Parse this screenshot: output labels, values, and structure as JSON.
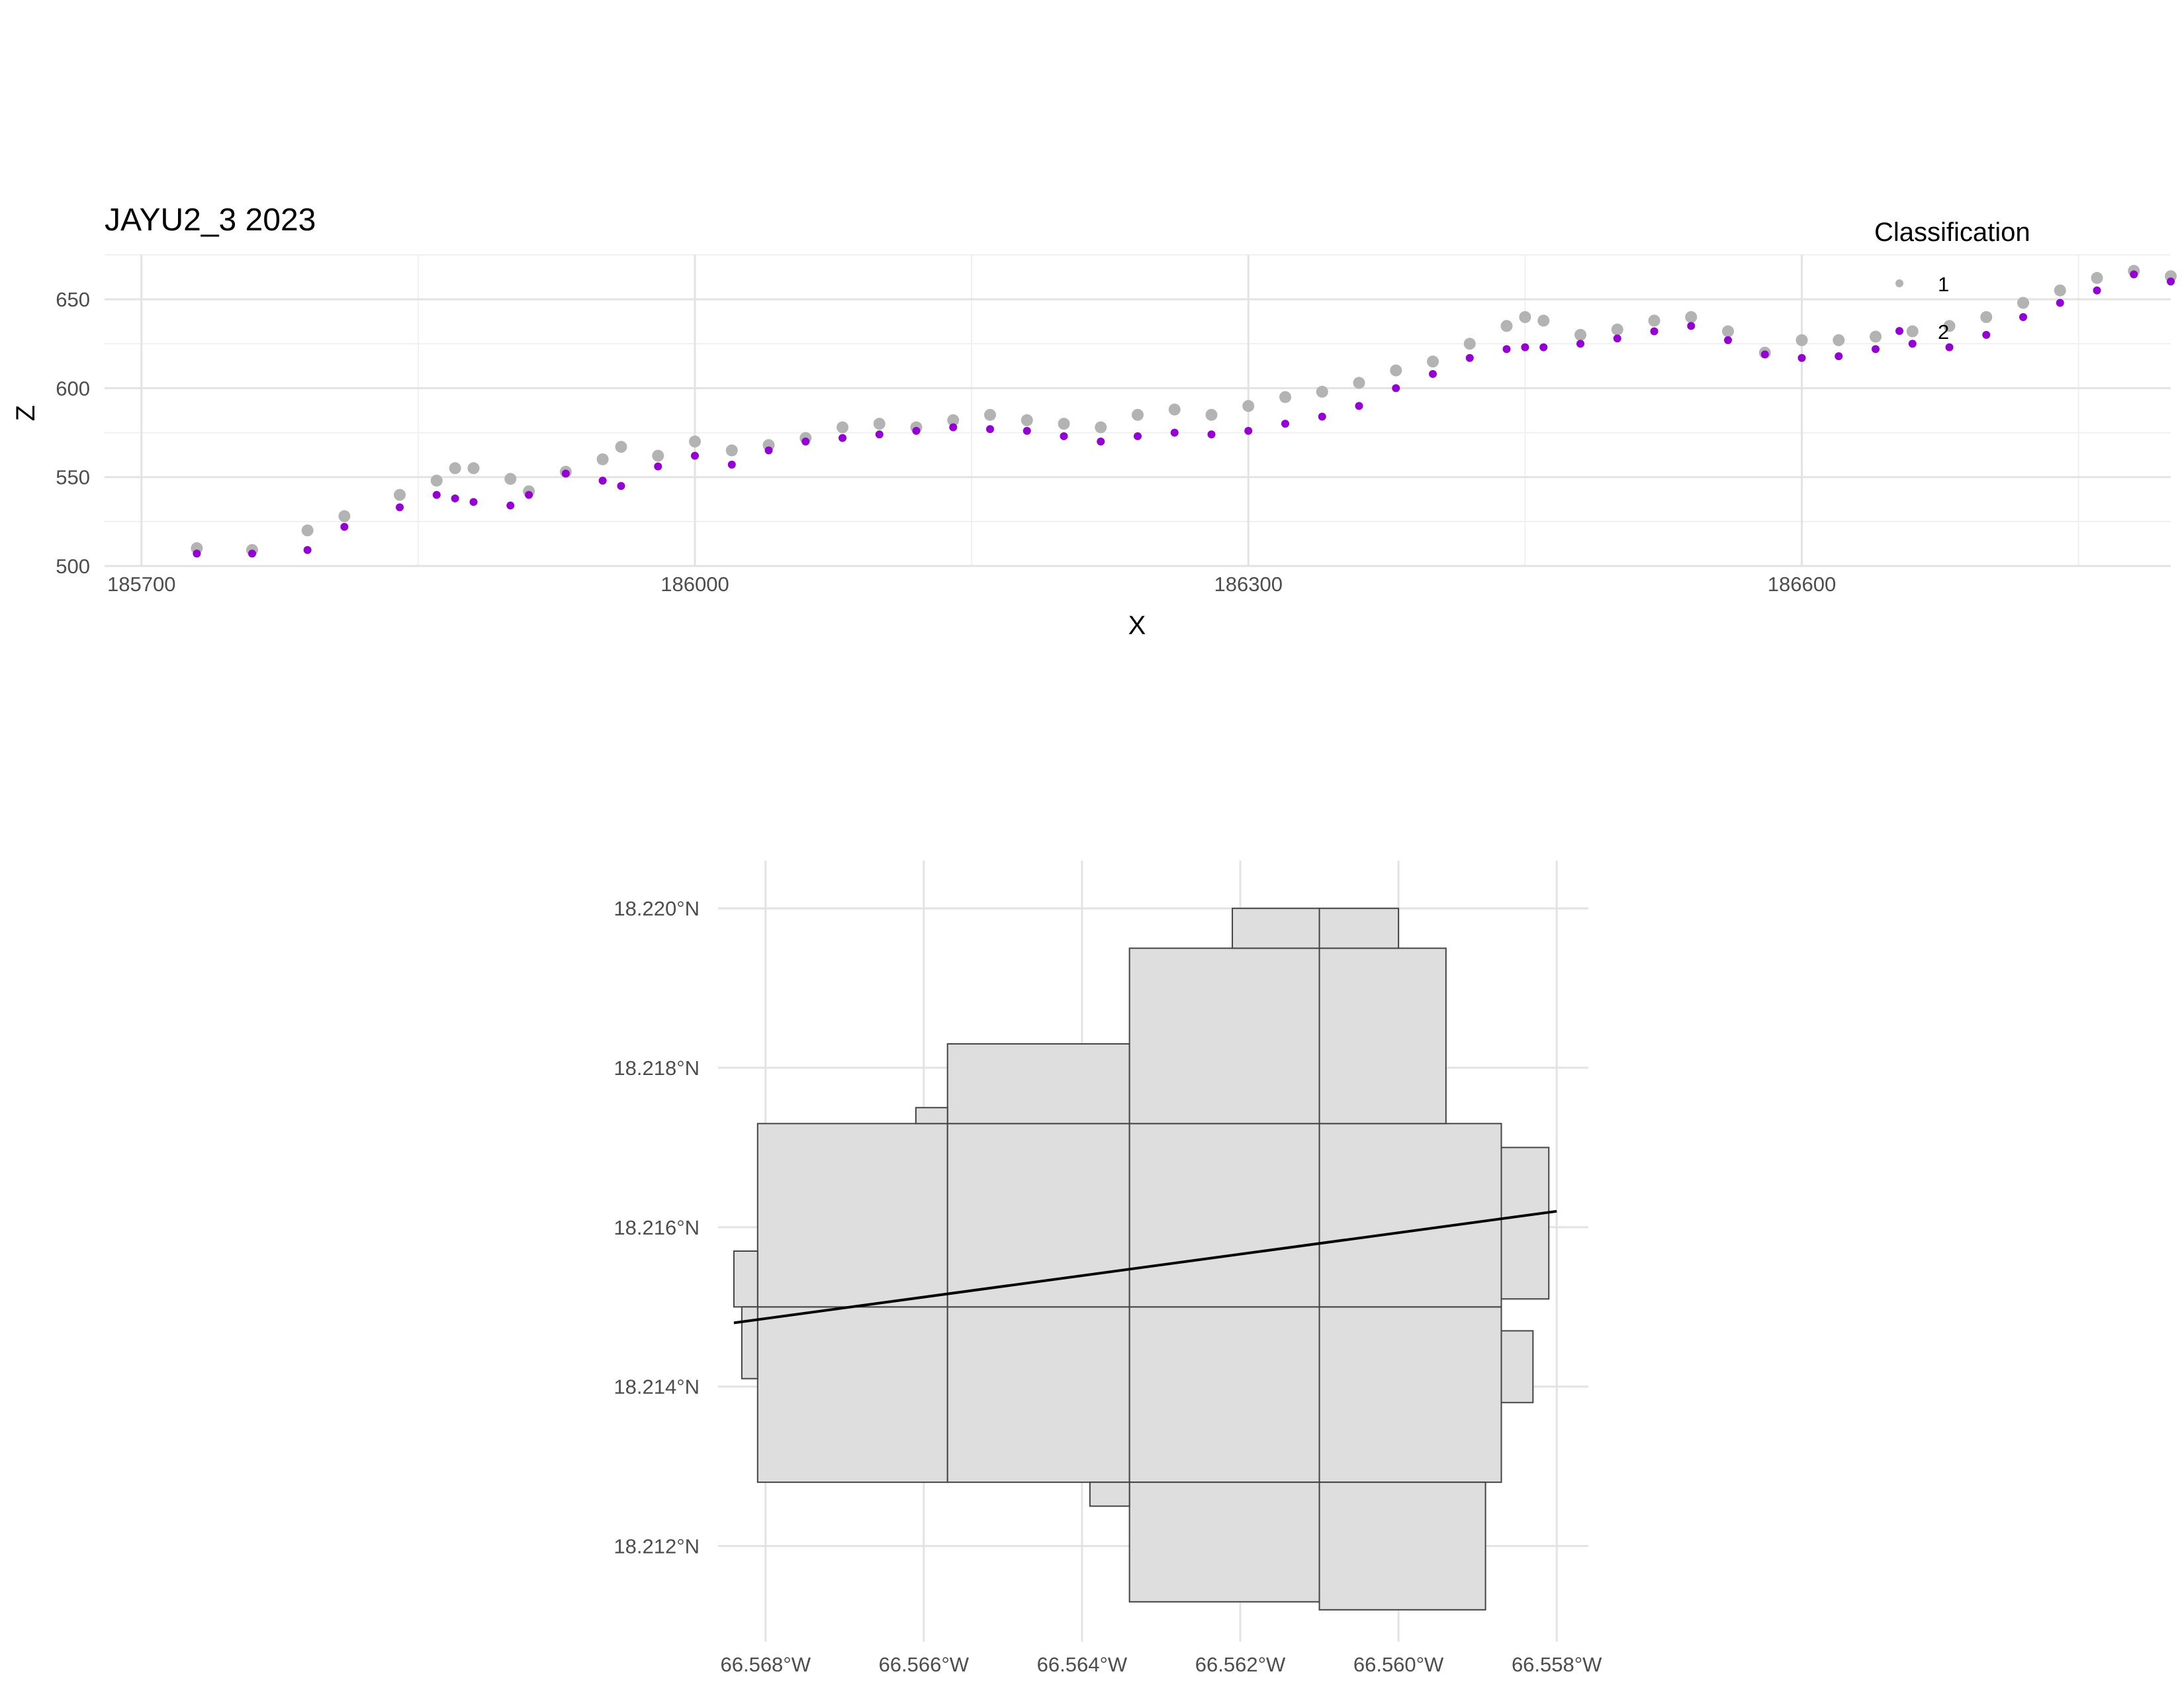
{
  "chart_data": [
    {
      "type": "scatter",
      "title": "JAYU2_3 2023",
      "xlabel": "X",
      "ylabel": "Z",
      "xlim": [
        185680,
        186800
      ],
      "ylim": [
        500,
        675
      ],
      "x_ticks": [
        185700,
        186000,
        186300,
        186600
      ],
      "x_tick_labels": [
        "185700",
        "186000",
        "186300",
        "186600"
      ],
      "y_ticks": [
        500,
        550,
        600,
        650
      ],
      "y_tick_labels": [
        "500",
        "550",
        "600",
        "650"
      ],
      "grid": true,
      "legend": {
        "title": "Classification",
        "placement": "top-right",
        "entries": [
          {
            "label": "1",
            "color": "#b3b3b3"
          },
          {
            "label": "2",
            "color": "#9400d3"
          }
        ]
      },
      "series": [
        {
          "name": "1",
          "color": "#b3b3b3",
          "x": [
            185730,
            185760,
            185790,
            185810,
            185840,
            185860,
            185870,
            185880,
            185900,
            185910,
            185930,
            185950,
            185960,
            185980,
            186000,
            186020,
            186040,
            186060,
            186080,
            186100,
            186120,
            186140,
            186160,
            186180,
            186200,
            186220,
            186240,
            186260,
            186280,
            186300,
            186320,
            186340,
            186360,
            186380,
            186400,
            186420,
            186440,
            186450,
            186460,
            186480,
            186500,
            186520,
            186540,
            186560,
            186580,
            186600,
            186620,
            186640,
            186660,
            186680,
            186700,
            186720,
            186740,
            186760,
            186780,
            186800
          ],
          "y": [
            510,
            509,
            520,
            528,
            540,
            548,
            555,
            555,
            549,
            542,
            553,
            560,
            567,
            562,
            570,
            565,
            568,
            572,
            578,
            580,
            578,
            582,
            585,
            582,
            580,
            578,
            585,
            588,
            585,
            590,
            595,
            598,
            603,
            610,
            615,
            625,
            635,
            640,
            638,
            630,
            633,
            638,
            640,
            632,
            620,
            627,
            627,
            629,
            632,
            635,
            640,
            648,
            655,
            662,
            666,
            663
          ]
        },
        {
          "name": "2",
          "color": "#9400d3",
          "x": [
            185730,
            185760,
            185790,
            185810,
            185840,
            185860,
            185870,
            185880,
            185900,
            185910,
            185930,
            185950,
            185960,
            185980,
            186000,
            186020,
            186040,
            186060,
            186080,
            186100,
            186120,
            186140,
            186160,
            186180,
            186200,
            186220,
            186240,
            186260,
            186280,
            186300,
            186320,
            186340,
            186360,
            186380,
            186400,
            186420,
            186440,
            186450,
            186460,
            186480,
            186500,
            186520,
            186540,
            186560,
            186580,
            186600,
            186620,
            186640,
            186660,
            186680,
            186700,
            186720,
            186740,
            186760,
            186780,
            186800
          ],
          "y": [
            507,
            507,
            509,
            522,
            533,
            540,
            538,
            536,
            534,
            540,
            552,
            548,
            545,
            556,
            562,
            557,
            565,
            570,
            572,
            574,
            576,
            578,
            577,
            576,
            573,
            570,
            573,
            575,
            574,
            576,
            580,
            584,
            590,
            600,
            608,
            617,
            622,
            623,
            623,
            625,
            628,
            632,
            635,
            627,
            619,
            617,
            618,
            622,
            625,
            623,
            630,
            640,
            648,
            655,
            664,
            660
          ]
        }
      ]
    },
    {
      "type": "map",
      "xlim": [
        -66.5686,
        -66.5576
      ],
      "ylim": [
        18.2108,
        18.2206
      ],
      "x_ticks": [
        -66.568,
        -66.566,
        -66.564,
        -66.562,
        -66.56,
        -66.558
      ],
      "x_tick_labels": [
        "66.568°W",
        "66.566°W",
        "66.564°W",
        "66.562°W",
        "66.560°W",
        "66.558°W"
      ],
      "y_ticks": [
        18.212,
        18.214,
        18.216,
        18.218,
        18.22
      ],
      "y_tick_labels": [
        "18.212°N",
        "18.214°N",
        "18.216°N",
        "18.218°N",
        "18.220°N"
      ],
      "grid": true,
      "tile_fill": "#dedede",
      "tile_stroke": "#444444",
      "tiles": [
        [
          -66.5681,
          -66.5657,
          18.2128,
          18.215
        ],
        [
          -66.5657,
          -66.5634,
          18.2128,
          18.215
        ],
        [
          -66.5634,
          -66.561,
          18.2128,
          18.215
        ],
        [
          -66.561,
          -66.5587,
          18.2128,
          18.215
        ],
        [
          -66.5681,
          -66.5657,
          18.215,
          18.2173
        ],
        [
          -66.5657,
          -66.5634,
          18.215,
          18.2173
        ],
        [
          -66.5634,
          -66.561,
          18.215,
          18.2173
        ],
        [
          -66.561,
          -66.5587,
          18.215,
          18.2173
        ],
        [
          -66.5657,
          -66.5634,
          18.2173,
          18.2183
        ],
        [
          -66.5634,
          -66.561,
          18.2173,
          18.2195
        ],
        [
          -66.561,
          -66.5594,
          18.2173,
          18.2195
        ],
        [
          -66.5621,
          -66.561,
          18.2195,
          18.22
        ],
        [
          -66.561,
          -66.56,
          18.2195,
          18.22
        ],
        [
          -66.5634,
          -66.561,
          18.2113,
          18.2128
        ],
        [
          -66.561,
          -66.5589,
          18.2112,
          18.2128
        ],
        [
          -66.5639,
          -66.5634,
          18.2125,
          18.2128
        ],
        [
          -66.5661,
          -66.5657,
          18.2173,
          18.2175
        ],
        [
          -66.5684,
          -66.5681,
          18.215,
          18.2157
        ],
        [
          -66.5683,
          -66.5681,
          18.2141,
          18.215
        ],
        [
          -66.5587,
          -66.5581,
          18.2151,
          18.217
        ],
        [
          -66.5587,
          -66.5583,
          18.2138,
          18.2147
        ]
      ],
      "line": {
        "x": [
          -66.5684,
          -66.558
        ],
        "y": [
          18.2148,
          18.2162
        ],
        "color": "#000000"
      }
    }
  ]
}
